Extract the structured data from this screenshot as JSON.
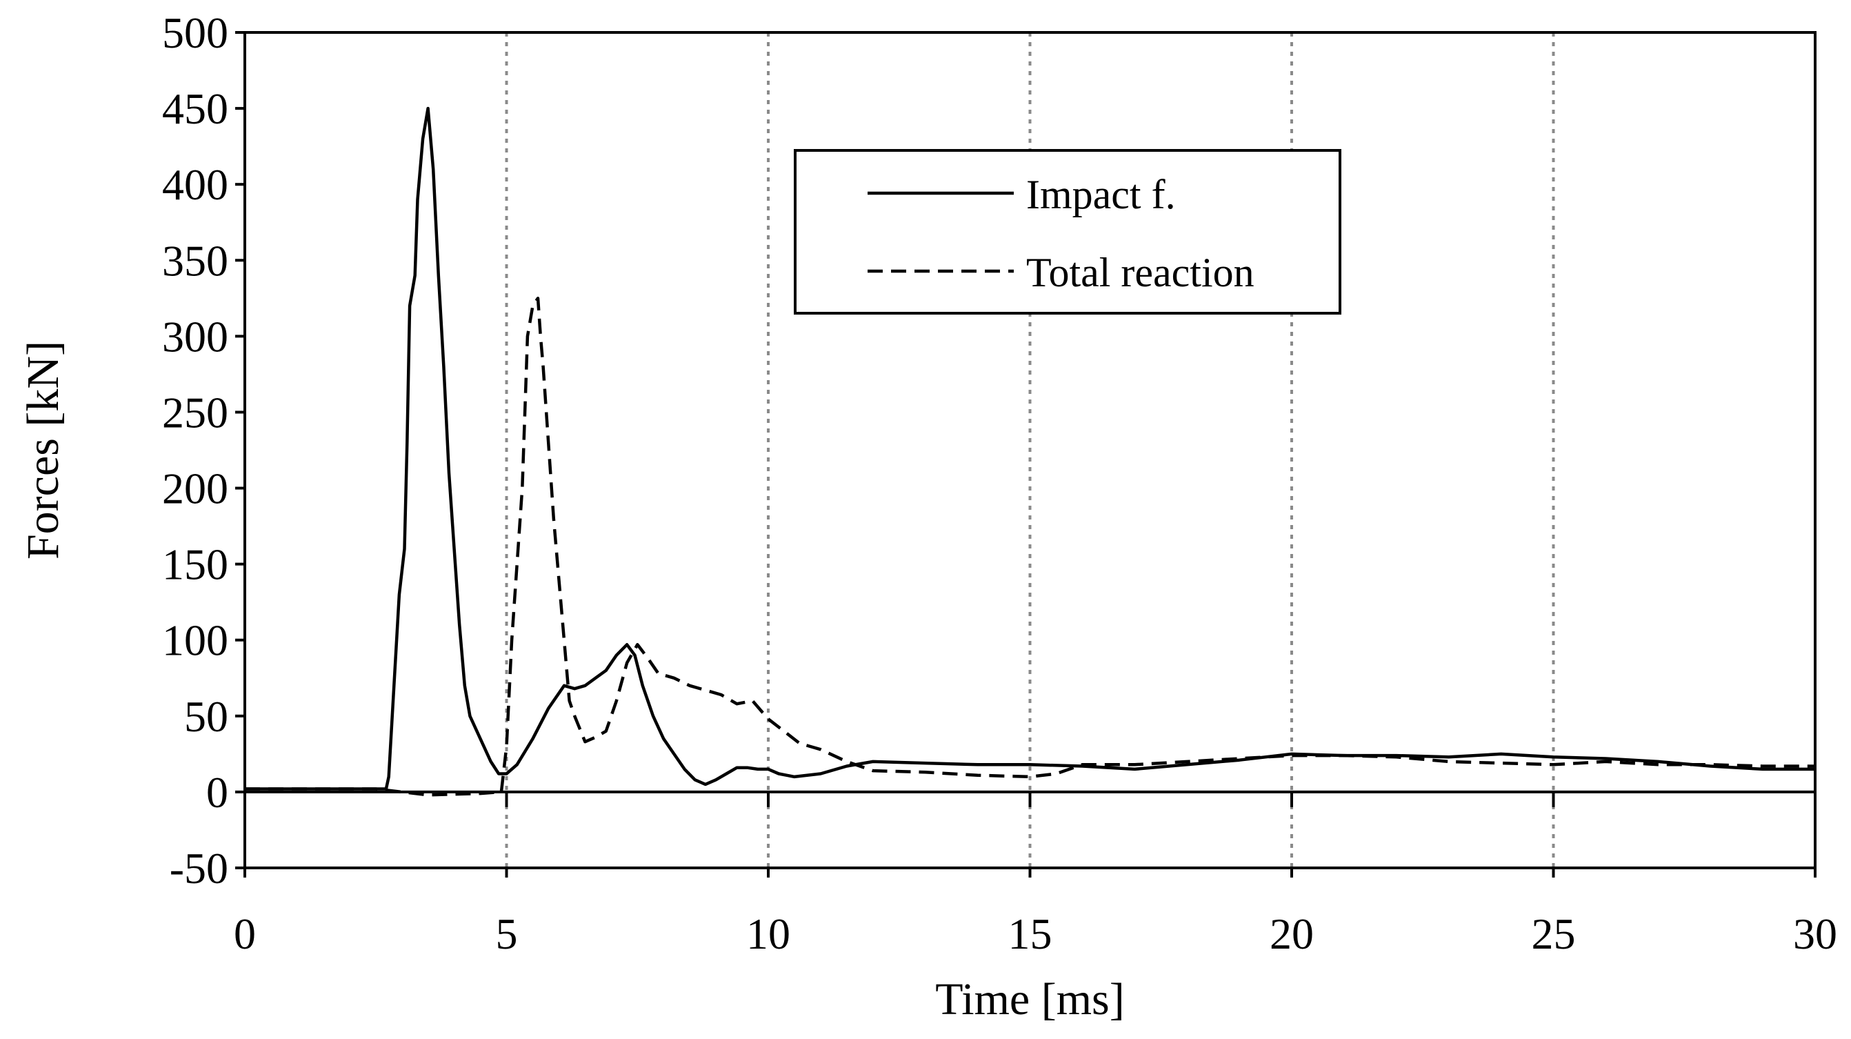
{
  "chart_data": {
    "type": "line",
    "title": "",
    "xlabel": "Time [ms]",
    "ylabel": "Forces [kN]",
    "xlim": [
      0,
      30
    ],
    "ylim": [
      -50,
      500
    ],
    "xticks": [
      0,
      5,
      10,
      15,
      20,
      25,
      30
    ],
    "yticks": [
      -50,
      0,
      50,
      100,
      150,
      200,
      250,
      300,
      350,
      400,
      450,
      500
    ],
    "vertical_grid": true,
    "horizontal_grid": false,
    "legend_position": "top-center",
    "series": [
      {
        "name": "Impact f.",
        "style": "solid",
        "points": [
          [
            0,
            2
          ],
          [
            2.0,
            2
          ],
          [
            2.7,
            2
          ],
          [
            2.75,
            10
          ],
          [
            2.85,
            70
          ],
          [
            2.95,
            130
          ],
          [
            3.05,
            160
          ],
          [
            3.1,
            230
          ],
          [
            3.15,
            320
          ],
          [
            3.25,
            340
          ],
          [
            3.3,
            390
          ],
          [
            3.4,
            430
          ],
          [
            3.5,
            450
          ],
          [
            3.6,
            410
          ],
          [
            3.7,
            340
          ],
          [
            3.8,
            280
          ],
          [
            3.9,
            210
          ],
          [
            4.0,
            160
          ],
          [
            4.1,
            110
          ],
          [
            4.2,
            70
          ],
          [
            4.3,
            50
          ],
          [
            4.5,
            35
          ],
          [
            4.7,
            20
          ],
          [
            4.85,
            12
          ],
          [
            5.0,
            12
          ],
          [
            5.2,
            18
          ],
          [
            5.5,
            35
          ],
          [
            5.8,
            55
          ],
          [
            6.1,
            70
          ],
          [
            6.3,
            68
          ],
          [
            6.5,
            70
          ],
          [
            6.7,
            75
          ],
          [
            6.9,
            80
          ],
          [
            7.1,
            90
          ],
          [
            7.3,
            97
          ],
          [
            7.45,
            90
          ],
          [
            7.6,
            70
          ],
          [
            7.8,
            50
          ],
          [
            8.0,
            35
          ],
          [
            8.2,
            25
          ],
          [
            8.4,
            15
          ],
          [
            8.6,
            8
          ],
          [
            8.8,
            5
          ],
          [
            9.0,
            8
          ],
          [
            9.2,
            12
          ],
          [
            9.4,
            16
          ],
          [
            9.6,
            16
          ],
          [
            9.8,
            15
          ],
          [
            10.0,
            15
          ],
          [
            10.2,
            12
          ],
          [
            10.5,
            10
          ],
          [
            11.0,
            12
          ],
          [
            11.5,
            17
          ],
          [
            12.0,
            20
          ],
          [
            13.0,
            19
          ],
          [
            14.0,
            18
          ],
          [
            15.0,
            18
          ],
          [
            16.0,
            17
          ],
          [
            17.0,
            15
          ],
          [
            18.0,
            18
          ],
          [
            19.0,
            21
          ],
          [
            20.0,
            25
          ],
          [
            21.0,
            24
          ],
          [
            22.0,
            24
          ],
          [
            23.0,
            23
          ],
          [
            24.0,
            25
          ],
          [
            25.0,
            23
          ],
          [
            26.0,
            22
          ],
          [
            27.0,
            20
          ],
          [
            28.0,
            17
          ],
          [
            29.0,
            15
          ],
          [
            30.0,
            15
          ]
        ]
      },
      {
        "name": "Total reaction",
        "style": "dashed",
        "points": [
          [
            0,
            2
          ],
          [
            2.0,
            2
          ],
          [
            2.5,
            2
          ],
          [
            3.0,
            0
          ],
          [
            3.5,
            -2
          ],
          [
            4.5,
            -1
          ],
          [
            4.9,
            0
          ],
          [
            5.0,
            30
          ],
          [
            5.1,
            100
          ],
          [
            5.2,
            150
          ],
          [
            5.3,
            200
          ],
          [
            5.4,
            300
          ],
          [
            5.5,
            320
          ],
          [
            5.6,
            325
          ],
          [
            5.65,
            300
          ],
          [
            5.7,
            280
          ],
          [
            5.8,
            230
          ],
          [
            5.9,
            180
          ],
          [
            6.0,
            140
          ],
          [
            6.1,
            100
          ],
          [
            6.2,
            60
          ],
          [
            6.3,
            50
          ],
          [
            6.5,
            33
          ],
          [
            6.7,
            36
          ],
          [
            6.9,
            40
          ],
          [
            7.1,
            60
          ],
          [
            7.3,
            85
          ],
          [
            7.5,
            97
          ],
          [
            7.7,
            88
          ],
          [
            7.9,
            78
          ],
          [
            8.2,
            75
          ],
          [
            8.5,
            70
          ],
          [
            8.8,
            67
          ],
          [
            9.1,
            64
          ],
          [
            9.4,
            58
          ],
          [
            9.7,
            60
          ],
          [
            10.0,
            48
          ],
          [
            10.3,
            40
          ],
          [
            10.6,
            32
          ],
          [
            11.0,
            28
          ],
          [
            11.5,
            20
          ],
          [
            12.0,
            14
          ],
          [
            13.0,
            13
          ],
          [
            14.0,
            11
          ],
          [
            15.0,
            10
          ],
          [
            15.5,
            12
          ],
          [
            16.0,
            18
          ],
          [
            17.0,
            18
          ],
          [
            18.0,
            20
          ],
          [
            19.0,
            22
          ],
          [
            20.0,
            24
          ],
          [
            21.0,
            24
          ],
          [
            22.0,
            23
          ],
          [
            23.0,
            20
          ],
          [
            24.0,
            19
          ],
          [
            25.0,
            18
          ],
          [
            26.0,
            20
          ],
          [
            27.0,
            18
          ],
          [
            28.0,
            18
          ],
          [
            29.0,
            17
          ],
          [
            30.0,
            17
          ]
        ]
      }
    ]
  }
}
